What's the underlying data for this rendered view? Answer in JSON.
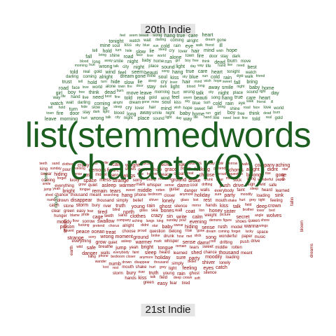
{
  "labels": {
    "top": "20th Indie",
    "bottom": "21st Indie"
  },
  "center_text": {
    "line1": "list(stemmedwords",
    "line2": "character(0))"
  },
  "colors": {
    "top_words": "#1b5e20",
    "bottom_words": "#8b0000",
    "label_bg": "#e5e5e5",
    "center_text": "#1b5e20"
  },
  "top_words": [
    "feel",
    "seem",
    "beauti",
    "song",
    "hang",
    "true",
    "care",
    "heart",
    "tonight",
    "watch",
    "wait",
    "darling",
    "coming",
    "alright",
    "dream",
    "gone",
    "mine",
    "soul",
    "kiss",
    "sky",
    "blue",
    "sun",
    "cold",
    "rain",
    "eye",
    "walk",
    "friend",
    "ill",
    "trust",
    "tell",
    "hold",
    "turn",
    "hide",
    "slow",
    "lie",
    "sleep",
    "cry",
    "lover",
    "hair",
    "mind",
    "wish",
    "hope",
    "sweet",
    "fall",
    "bring",
    "shine",
    "road",
    "face",
    "love",
    "world",
    "alone",
    "town",
    "fire",
    "door",
    "stay",
    "dark",
    "light",
    "blood",
    "long",
    "away",
    "smile",
    "night",
    "baby",
    "home",
    "run",
    "girl",
    "boy",
    "free",
    "think",
    "dead",
    "burn",
    "move",
    "leave",
    "morning",
    "hurt",
    "wrong",
    "talk",
    "city",
    "night",
    "place",
    "sound",
    "light",
    "day",
    "way",
    "life",
    "hand",
    "live",
    "need",
    "best",
    "fine",
    "told",
    "real",
    "gold",
    "wind"
  ],
  "bottom_words": [
    "teeth",
    "sand",
    "clothes",
    "crazy",
    "sin",
    "write",
    "calm",
    "weight",
    "picture",
    "secret",
    "angle",
    "wolves",
    "moody",
    "flow",
    "sorrow",
    "swallow",
    "company",
    "aching",
    "lungs",
    "king",
    "sunday",
    "pour",
    "evening",
    "demons",
    "figure",
    "shoes",
    "queen",
    "shore",
    "grace",
    "poison",
    "fucking",
    "pretend",
    "chorus",
    "alright",
    "didnt",
    "star",
    "baby",
    "swear",
    "hiding",
    "sense",
    "rush",
    "model",
    "wanna",
    "wings",
    "nice",
    "havent",
    "peace",
    "ocean",
    "treat",
    "choose",
    "proud",
    "question",
    "belong",
    "rise",
    "gone",
    "dream",
    "coming",
    "forget",
    "lucky",
    "space",
    "mess",
    "strange",
    "sorry",
    "wrong",
    "moment",
    "ground",
    "broke",
    "drunk",
    "hour",
    "met",
    "stick",
    "song",
    "wonderful",
    "paper",
    "music",
    "smile",
    "everything",
    "grow",
    "quiet",
    "asleep",
    "warmer",
    "mark",
    "whisper",
    "sense",
    "damn",
    "cool",
    "drifting",
    "push",
    "drive",
    "sign",
    "wild",
    "safe",
    "breathe",
    "jump",
    "yeah",
    "bright",
    "tongue",
    "remain",
    "tears",
    "sweet",
    "middle",
    "rotten",
    "guitar",
    "danger",
    "walls",
    "everybody",
    "faint",
    "sleep",
    "heard",
    "learned",
    "shed",
    "chance",
    "thousand",
    "meant",
    "searching",
    "hang",
    "phone",
    "bedroom",
    "closer",
    "anymore",
    "holiday",
    "sure",
    "party",
    "moodily",
    "loading",
    "sink",
    "wander",
    "numb",
    "drown",
    "disappear",
    "thousand",
    "simply",
    "belief",
    "shiver",
    "lonely",
    "glass"
  ],
  "bottom_words_extra": [
    "lost",
    "rest",
    "mouth",
    "shake",
    "hurt",
    "grey",
    "tight",
    "feeling",
    "eyes",
    "catch",
    "stone",
    "storm",
    "bury",
    "river",
    "truth",
    "young",
    "rain",
    "ghost",
    "silence",
    "mirror",
    "hands",
    "kiss",
    "talk",
    "field",
    "deep",
    "crown",
    "soft",
    "clear",
    "green",
    "easy",
    "fear",
    "tired",
    "blind",
    "north",
    "glass",
    "sea",
    "bones",
    "wall",
    "coat",
    "lion",
    "honey",
    "sister",
    "brother",
    "lover",
    "bed",
    "fever",
    "hunger",
    "blame",
    "pride",
    "cage"
  ]
}
